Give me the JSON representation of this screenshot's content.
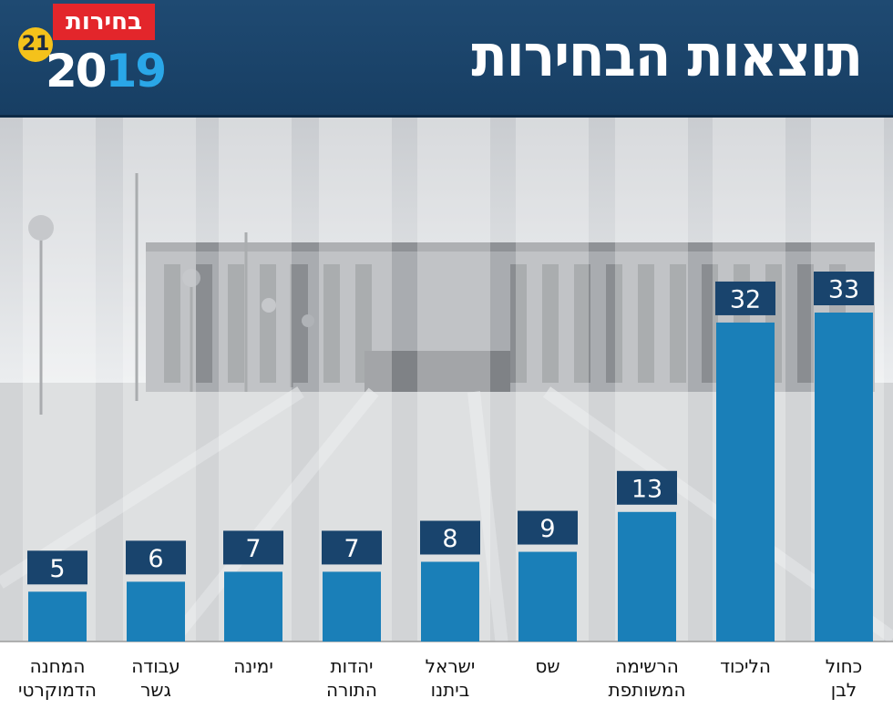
{
  "header": {
    "title": "תוצאות הבחירות",
    "logo_badge": "בחירות",
    "logo_number": "21",
    "logo_year_prefix": "20",
    "logo_year_suffix": "19"
  },
  "colors": {
    "header_bg": "#1f4a72",
    "bar": "#1a7fb8",
    "value_box": "#19446d",
    "badge_red": "#e3262b",
    "badge_yellow": "#f4c21b"
  },
  "chart_data": {
    "type": "bar",
    "title": "תוצאות הבחירות",
    "categories": [
      [
        "המחנה",
        "הדמוקרטי"
      ],
      [
        "עבודה",
        "גשר"
      ],
      [
        "ימינה"
      ],
      [
        "יהדות",
        "התורה"
      ],
      [
        "ישראל",
        "ביתנו"
      ],
      [
        "שס"
      ],
      [
        "הרשימה",
        "המשותפת"
      ],
      [
        "הליכוד"
      ],
      [
        "כחול",
        "לבן"
      ]
    ],
    "values": [
      5,
      6,
      7,
      7,
      8,
      9,
      13,
      32,
      33
    ],
    "xlabel": "",
    "ylabel": "",
    "ylim": [
      0,
      33
    ],
    "grid": false,
    "legend": "none"
  }
}
